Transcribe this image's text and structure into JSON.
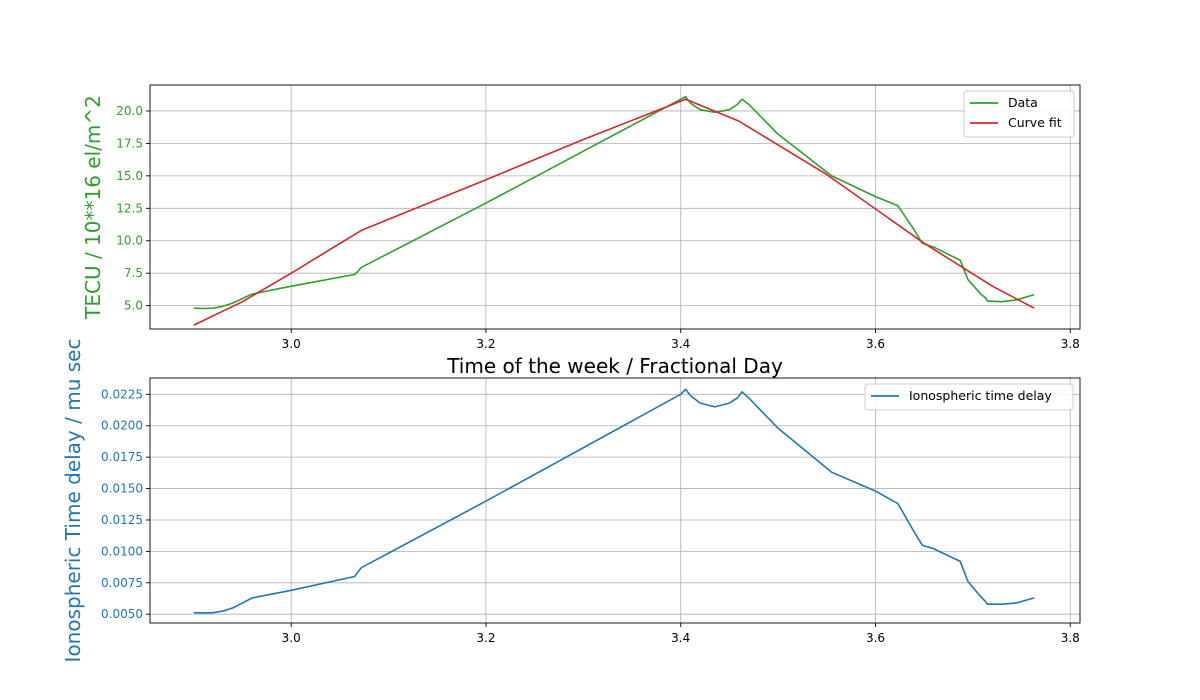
{
  "colors": {
    "data_green": "#2ca02c",
    "fit_red": "#d62728",
    "iono_blue": "#1f77b4",
    "grid": "#b0b0b0",
    "axis": "#000000"
  },
  "chart_data": [
    {
      "type": "line",
      "title": "",
      "xlabel": "Time of the week / Fractional Day",
      "ylabel": "TECU / 10**16 el/m^2",
      "xlim": [
        2.855,
        3.81
      ],
      "ylim": [
        3.2,
        22.0
      ],
      "xticks": [
        3.0,
        3.2,
        3.4,
        3.6,
        3.8
      ],
      "xtick_labels": [
        "3.0",
        "3.2",
        "3.4",
        "3.6",
        "3.8"
      ],
      "yticks": [
        5.0,
        7.5,
        10.0,
        12.5,
        15.0,
        17.5,
        20.0
      ],
      "ytick_labels": [
        "5.0",
        "7.5",
        "10.0",
        "12.5",
        "15.0",
        "17.5",
        "20.0"
      ],
      "grid": true,
      "legend_position": "upper right",
      "series": [
        {
          "name": "Data",
          "color": "#2ca02c",
          "x": [
            2.9,
            2.91,
            2.92,
            2.93,
            2.94,
            2.95,
            2.96,
            3.0,
            3.065,
            3.068,
            3.072,
            3.2,
            3.4,
            3.405,
            3.41,
            3.42,
            3.435,
            3.45,
            3.458,
            3.463,
            3.47,
            3.5,
            3.555,
            3.6,
            3.623,
            3.64,
            3.648,
            3.66,
            3.687,
            3.695,
            3.708,
            3.713,
            3.715,
            3.73,
            3.745,
            3.763
          ],
          "y": [
            4.8,
            4.78,
            4.8,
            4.95,
            5.2,
            5.55,
            5.9,
            6.5,
            7.4,
            7.6,
            7.95,
            12.9,
            20.9,
            21.1,
            20.6,
            20.1,
            19.9,
            20.1,
            20.5,
            20.9,
            20.5,
            18.2,
            15.0,
            13.4,
            12.7,
            10.8,
            9.8,
            9.5,
            8.5,
            7.0,
            5.9,
            5.6,
            5.35,
            5.3,
            5.45,
            5.85
          ]
        },
        {
          "name": "Curve fit",
          "color": "#d62728",
          "x": [
            2.9,
            2.95,
            3.0,
            3.072,
            3.2,
            3.3,
            3.405,
            3.46,
            3.55,
            3.65,
            3.72,
            3.763
          ],
          "y": [
            3.5,
            5.3,
            7.5,
            10.8,
            14.7,
            17.8,
            20.9,
            19.2,
            15.1,
            9.8,
            6.5,
            4.8
          ]
        }
      ]
    },
    {
      "type": "line",
      "title": "",
      "xlabel": "",
      "ylabel": "Ionospheric Time delay / mu sec",
      "xlim": [
        2.855,
        3.81
      ],
      "ylim": [
        0.0043,
        0.0238
      ],
      "xticks": [
        3.0,
        3.2,
        3.4,
        3.6,
        3.8
      ],
      "xtick_labels": [
        "3.0",
        "3.2",
        "3.4",
        "3.6",
        "3.8"
      ],
      "yticks": [
        0.005,
        0.0075,
        0.01,
        0.0125,
        0.015,
        0.0175,
        0.02,
        0.0225
      ],
      "ytick_labels": [
        "0.0050",
        "0.0075",
        "0.0100",
        "0.0125",
        "0.0150",
        "0.0175",
        "0.0200",
        "0.0225"
      ],
      "grid": true,
      "legend_position": "upper right",
      "series": [
        {
          "name": "Ionospheric time delay",
          "color": "#1f77b4",
          "x": [
            2.9,
            2.91,
            2.92,
            2.93,
            2.94,
            2.95,
            2.96,
            3.0,
            3.065,
            3.068,
            3.072,
            3.2,
            3.4,
            3.405,
            3.41,
            3.42,
            3.435,
            3.45,
            3.458,
            3.463,
            3.47,
            3.5,
            3.555,
            3.6,
            3.623,
            3.64,
            3.648,
            3.66,
            3.687,
            3.695,
            3.708,
            3.713,
            3.715,
            3.73,
            3.745,
            3.763
          ],
          "y": [
            0.00512,
            0.0051,
            0.00512,
            0.00525,
            0.0055,
            0.0059,
            0.0063,
            0.0069,
            0.008,
            0.0083,
            0.0087,
            0.014,
            0.0225,
            0.0229,
            0.0224,
            0.0218,
            0.0215,
            0.0218,
            0.0222,
            0.0227,
            0.0222,
            0.0198,
            0.0163,
            0.0148,
            0.0138,
            0.0115,
            0.0105,
            0.0102,
            0.0092,
            0.0076,
            0.0064,
            0.006,
            0.0058,
            0.0058,
            0.0059,
            0.0063
          ]
        }
      ]
    }
  ]
}
